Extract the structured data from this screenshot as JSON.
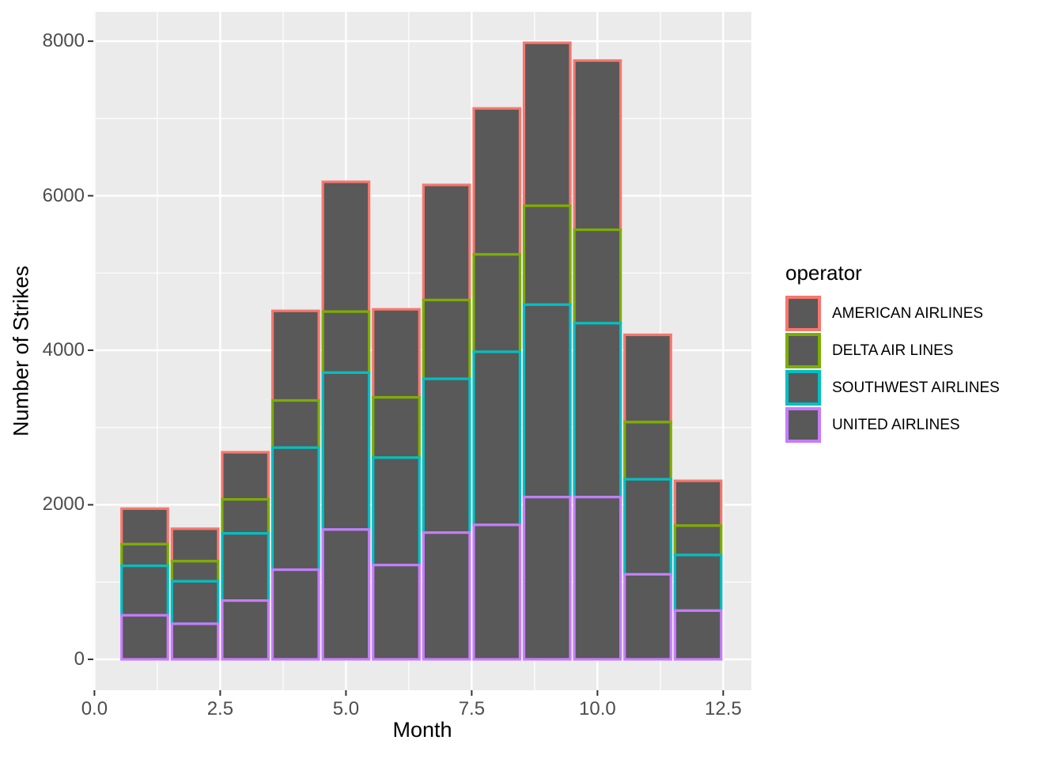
{
  "figure": {
    "background": "#FFFFFF",
    "panel_background": "#EBEBEB",
    "gridline_color": "#FFFFFF",
    "bar_fill": "#595959",
    "axis_text_color": "#4D4D4D",
    "tick_mark_color": "#333333"
  },
  "axes": {
    "x": {
      "title": "Month",
      "tick_labels": [
        "0.0",
        "2.5",
        "5.0",
        "7.5",
        "10.0",
        "12.5"
      ],
      "tick_values": [
        0,
        2.5,
        5,
        7.5,
        10,
        12.5
      ],
      "minor_values": [
        1.25,
        3.75,
        6.25,
        8.75,
        11.25
      ],
      "range": [
        -0.022,
        13.06
      ]
    },
    "y": {
      "title": "Number of Strikes",
      "tick_labels": [
        "0",
        "2000",
        "4000",
        "6000",
        "8000"
      ],
      "tick_values": [
        0,
        2000,
        4000,
        6000,
        8000
      ],
      "minor_values": [
        1000,
        3000,
        5000,
        7000
      ],
      "range": [
        -400,
        8380
      ]
    }
  },
  "legend": {
    "title": "operator",
    "items": [
      {
        "label": "AMERICAN AIRLINES",
        "color": "#F8766D"
      },
      {
        "label": "DELTA AIR LINES",
        "color": "#7CAE00"
      },
      {
        "label": "SOUTHWEST AIRLINES",
        "color": "#00BFC4"
      },
      {
        "label": "UNITED AIRLINES",
        "color": "#C77CFF"
      }
    ]
  },
  "chart_data": {
    "type": "bar",
    "stacked": true,
    "title": "",
    "xlabel": "Month",
    "ylabel": "Number of Strikes",
    "x": [
      1,
      2,
      3,
      4,
      5,
      6,
      7,
      8,
      9,
      10,
      11,
      12
    ],
    "bar_width": 0.92,
    "xlim": [
      0,
      13
    ],
    "ylim": [
      0,
      8380
    ],
    "grid": true,
    "legend_position": "right",
    "bar_fill": "#595959",
    "series": [
      {
        "name": "UNITED AIRLINES",
        "outline_color": "#C77CFF",
        "values": [
          570,
          460,
          760,
          1160,
          1680,
          1220,
          1640,
          1740,
          2100,
          2100,
          1100,
          630
        ]
      },
      {
        "name": "SOUTHWEST AIRLINES",
        "outline_color": "#00BFC4",
        "values": [
          640,
          550,
          870,
          1580,
          2030,
          1390,
          1990,
          2240,
          2490,
          2250,
          1230,
          720
        ]
      },
      {
        "name": "DELTA AIR LINES",
        "outline_color": "#7CAE00",
        "values": [
          280,
          260,
          440,
          610,
          790,
          780,
          1020,
          1260,
          1280,
          1210,
          740,
          380
        ]
      },
      {
        "name": "AMERICAN AIRLINES",
        "outline_color": "#F8766D",
        "values": [
          460,
          420,
          610,
          1160,
          1680,
          1140,
          1490,
          1890,
          2110,
          2190,
          1130,
          580
        ]
      }
    ],
    "totals": [
      1950,
      1690,
      2680,
      4510,
      6180,
      4530,
      6140,
      7130,
      7980,
      7750,
      4200,
      2310
    ]
  }
}
